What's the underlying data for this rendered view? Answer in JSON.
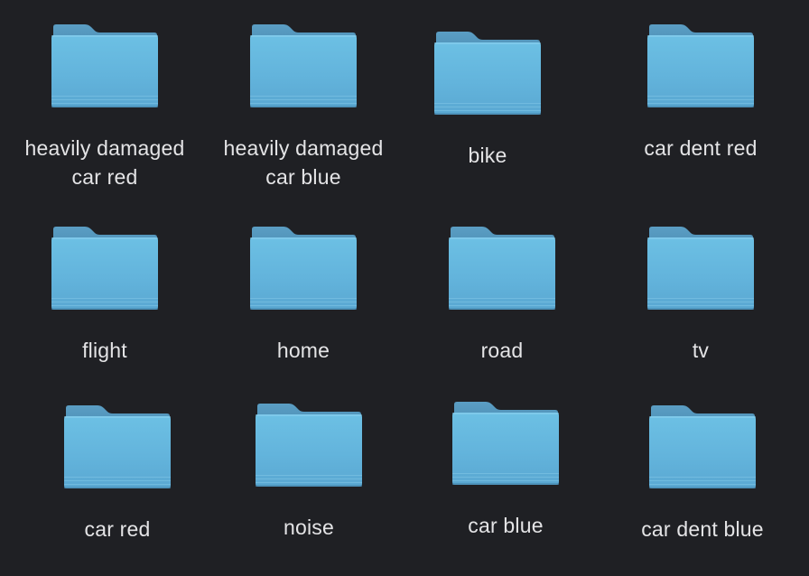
{
  "colors": {
    "background": "#1f2024",
    "folder_back": "#4f93b8",
    "folder_front_top": "#66b8dc",
    "folder_front_bottom": "#57a9d2",
    "label_text": "#e4e4e6"
  },
  "folders": [
    {
      "label": "heavily damaged car red",
      "icon": "folder-icon"
    },
    {
      "label": "heavily damaged car blue",
      "icon": "folder-icon"
    },
    {
      "label": "bike",
      "icon": "folder-icon"
    },
    {
      "label": "car dent red",
      "icon": "folder-icon"
    },
    {
      "label": "flight",
      "icon": "folder-icon"
    },
    {
      "label": "home",
      "icon": "folder-icon"
    },
    {
      "label": "road",
      "icon": "folder-icon"
    },
    {
      "label": "tv",
      "icon": "folder-icon"
    },
    {
      "label": "car red",
      "icon": "folder-icon"
    },
    {
      "label": "noise",
      "icon": "folder-icon"
    },
    {
      "label": "car blue",
      "icon": "folder-icon"
    },
    {
      "label": "car dent blue",
      "icon": "folder-icon"
    }
  ]
}
